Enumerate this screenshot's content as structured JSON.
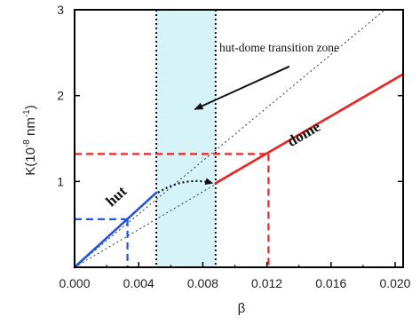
{
  "chart_data": {
    "type": "line",
    "xlabel": "β",
    "ylabel": "K(10",
    "ylabel_sup": "-8",
    "ylabel_unit": " nm",
    "ylabel_sup2": "-1",
    "ylabel_close": ")",
    "xlim": [
      0,
      0.0205
    ],
    "ylim": [
      0,
      3
    ],
    "x_ticks": [
      {
        "value": 0.0,
        "label": "0.000"
      },
      {
        "value": 0.004,
        "label": "0.004"
      },
      {
        "value": 0.008,
        "label": "0.008"
      },
      {
        "value": 0.012,
        "label": "0.012"
      },
      {
        "value": 0.016,
        "label": "0.016"
      },
      {
        "value": 0.02,
        "label": "0.020"
      }
    ],
    "y_ticks": [
      {
        "value": 1,
        "label": "1"
      },
      {
        "value": 2,
        "label": "2"
      },
      {
        "value": 3,
        "label": "3"
      }
    ],
    "colors": {
      "hut": "#2255dd",
      "dome": "#ee2222",
      "zone_fill": "#d6f3f8",
      "black": "#111111"
    },
    "series": [
      {
        "name": "hut",
        "color": "#2255dd",
        "style": "solid",
        "x": [
          0.0,
          0.0051
        ],
        "y": [
          0.0,
          0.87
        ]
      },
      {
        "name": "dome",
        "color": "#ee2222",
        "style": "solid",
        "x": [
          0.0088,
          0.0205
        ],
        "y": [
          0.98,
          2.25
        ]
      }
    ],
    "transition_zone": {
      "x_start": 0.0051,
      "x_end": 0.0088,
      "label": "hut-dome transition zone"
    },
    "guide_lines": [
      {
        "slope": 155,
        "style": "dotted"
      },
      {
        "slope": 110,
        "style": "dotted"
      }
    ],
    "reference_lines": [
      {
        "color": "#2255dd",
        "style": "dashed",
        "point": [
          0.0033,
          0.56
        ]
      },
      {
        "color": "#ee2222",
        "style": "dashed",
        "point": [
          0.0121,
          1.32
        ]
      }
    ],
    "transition_arrow": {
      "from": [
        0.0052,
        0.87
      ],
      "to": [
        0.0086,
        0.98
      ]
    },
    "annotation_arrow": {
      "from": [
        0.0134,
        2.34
      ],
      "to": [
        0.0075,
        1.84
      ]
    },
    "labels": {
      "hut": {
        "text": "hut",
        "x": 0.0023,
        "y": 0.7
      },
      "dome": {
        "text": "dome",
        "x": 0.0135,
        "y": 1.4
      }
    }
  }
}
